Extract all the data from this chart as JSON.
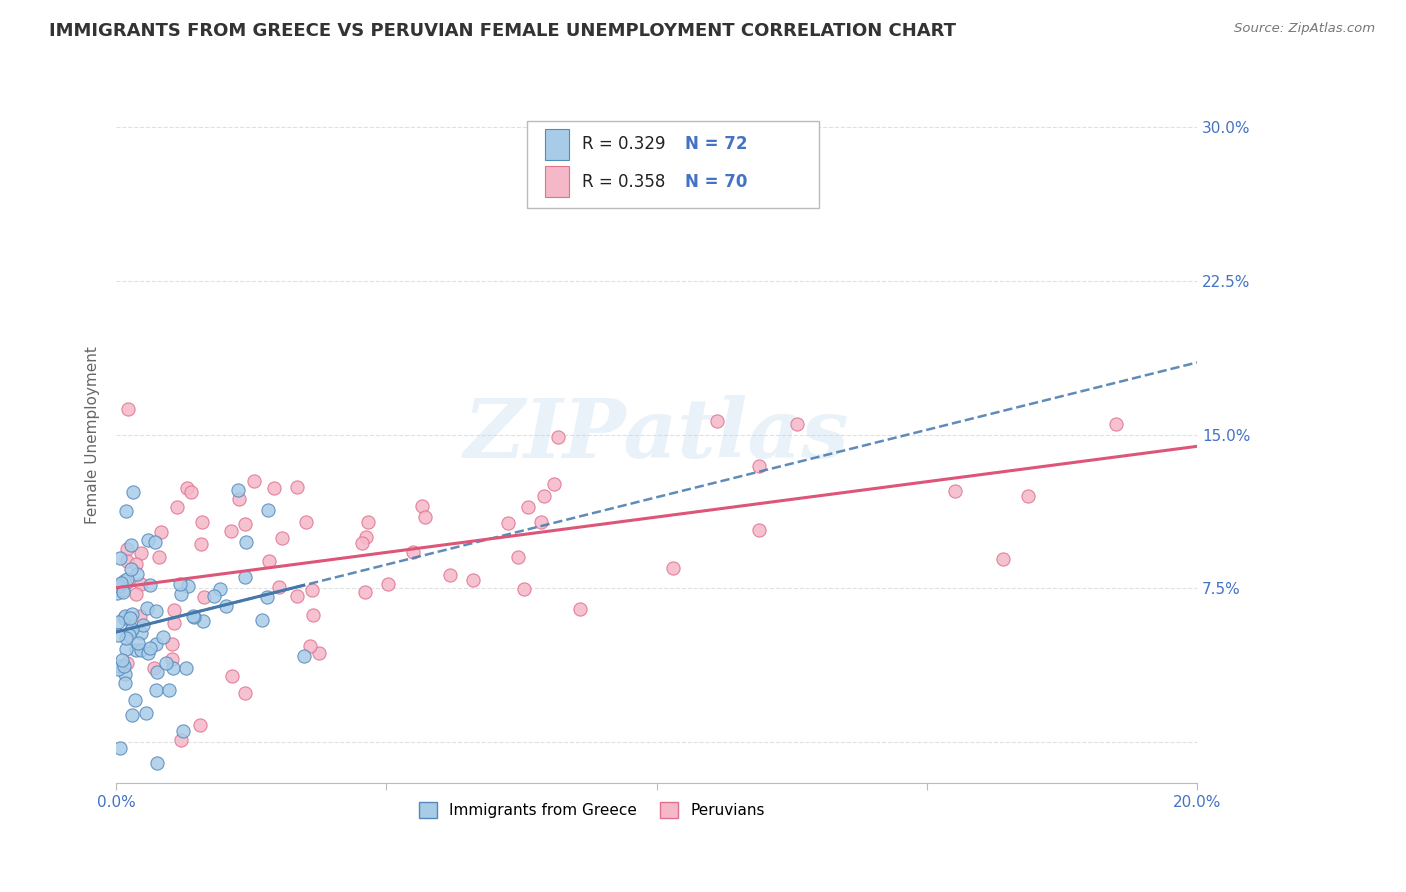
{
  "title": "IMMIGRANTS FROM GREECE VS PERUVIAN FEMALE UNEMPLOYMENT CORRELATION CHART",
  "source": "Source: ZipAtlas.com",
  "ylabel_label": "Female Unemployment",
  "x_min": 0.0,
  "x_max": 0.2,
  "y_min": -0.02,
  "y_max": 0.32,
  "y_ticks": [
    0.0,
    0.075,
    0.15,
    0.225,
    0.3
  ],
  "y_tick_labels": [
    "",
    "7.5%",
    "15.0%",
    "22.5%",
    "30.0%"
  ],
  "series1_color": "#a8cce8",
  "series1_edge_color": "#5588bb",
  "series2_color": "#f5b8c8",
  "series2_edge_color": "#e07090",
  "trend1_color": "#4477aa",
  "trend2_color": "#dd5577",
  "R1": 0.329,
  "N1": 72,
  "R2": 0.358,
  "N2": 70,
  "legend1_label": "Immigrants from Greece",
  "legend2_label": "Peruvians",
  "watermark": "ZIPatlas",
  "background_color": "#ffffff",
  "grid_color": "#cccccc",
  "title_color": "#333333",
  "tick_label_color": "#4472C4",
  "title_fontsize": 13,
  "axis_label_fontsize": 11,
  "tick_fontsize": 11,
  "trend1_slope": 0.9,
  "trend1_intercept": 0.05,
  "trend2_slope": 0.32,
  "trend2_intercept": 0.07,
  "seed1": 42,
  "seed2": 99
}
